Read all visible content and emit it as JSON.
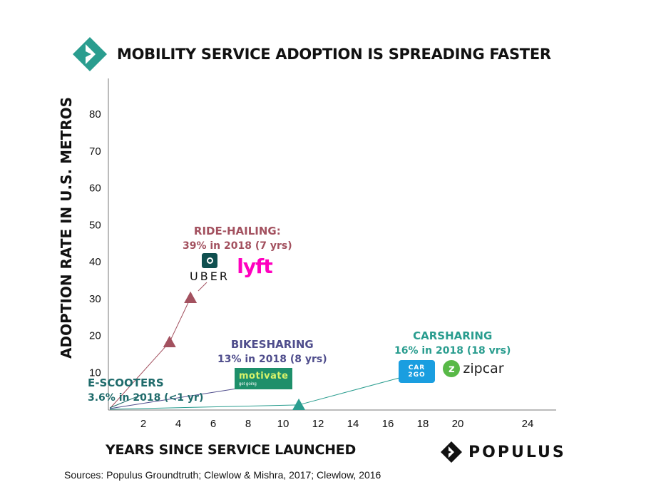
{
  "title": "MOBILITY SERVICE ADOPTION IS SPREADING FASTER",
  "sources": "Sources: Populus Groundtruth; Clewlow & Mishra, 2017; Clewlow, 2016",
  "brand": "POPULUS",
  "colors": {
    "ride_hailing": "#a3515f",
    "bikesharing": "#4f4d8c",
    "carsharing": "#2a9d8f",
    "escooters": "#1f6b6b",
    "brand_teal": "#2a9d8f"
  },
  "logos": {
    "uber": "UBER",
    "lyft": "lyft",
    "motivate": "motivate",
    "motivate_tagline": "get going",
    "car2go": "CAR 2GO",
    "zipcar": "zipcar"
  },
  "chart_data": {
    "type": "scatter",
    "title": "MOBILITY SERVICE ADOPTION IS SPREADING FASTER",
    "xlabel": "YEARS SINCE SERVICE LAUNCHED",
    "ylabel": "ADOPTION RATE IN U.S. METROS",
    "xlim": [
      0,
      24
    ],
    "ylim": [
      0,
      80
    ],
    "xticks": [
      2,
      4,
      6,
      8,
      10,
      12,
      14,
      16,
      18,
      20,
      24
    ],
    "yticks": [
      10,
      20,
      30,
      40,
      50,
      60,
      70,
      80
    ],
    "grid": false,
    "series": [
      {
        "key": "ride_hailing",
        "name": "RIDE-HAILING:",
        "label": "39% in 2018 (7 yrs)",
        "points": [
          {
            "x": 3.5,
            "y": 18
          },
          {
            "x": 4.7,
            "y": 30
          }
        ],
        "color": "#a3515f"
      },
      {
        "key": "bikesharing",
        "name": "BIKESHARING",
        "label": "13% in 2018 (8 yrs)",
        "points": [],
        "color": "#4f4d8c"
      },
      {
        "key": "carsharing",
        "name": "CARSHARING",
        "label": "16% in 2018 (18 vrs)",
        "points": [
          {
            "x": 10.9,
            "y": 1
          }
        ],
        "color": "#2a9d8f"
      },
      {
        "key": "escooters",
        "name": "E-SCOOTERS",
        "label": "3.6% in 2018 (<1 yr)",
        "points": [],
        "color": "#1f6b6b"
      }
    ]
  }
}
